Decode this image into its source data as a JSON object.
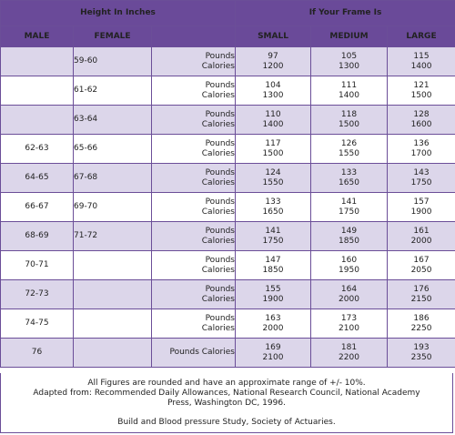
{
  "header": {
    "height_group": "Height In Inches",
    "frame_group": "If Your Frame Is",
    "male": "MALE",
    "female": "FEMALE",
    "small": "SMALL",
    "medium": "MEDIUM",
    "large": "LARGE"
  },
  "units": {
    "pounds": "Pounds",
    "calories": "Calories",
    "combined": "Pounds Calories"
  },
  "rows": [
    {
      "male": "",
      "female": "59-60",
      "small_lb": "97",
      "small_cal": "1200",
      "medium_lb": "105",
      "medium_cal": "1300",
      "large_lb": "115",
      "large_cal": "1400"
    },
    {
      "male": "",
      "female": "61-62",
      "small_lb": "104",
      "small_cal": "1300",
      "medium_lb": "111",
      "medium_cal": "1400",
      "large_lb": "121",
      "large_cal": "1500"
    },
    {
      "male": "",
      "female": "63-64",
      "small_lb": "110",
      "small_cal": "1400",
      "medium_lb": "118",
      "medium_cal": "1500",
      "large_lb": "128",
      "large_cal": "1600"
    },
    {
      "male": "62-63",
      "female": "65-66",
      "small_lb": "117",
      "small_cal": "1500",
      "medium_lb": "126",
      "medium_cal": "1550",
      "large_lb": "136",
      "large_cal": "1700"
    },
    {
      "male": "64-65",
      "female": "67-68",
      "small_lb": "124",
      "small_cal": "1550",
      "medium_lb": "133",
      "medium_cal": "1650",
      "large_lb": "143",
      "large_cal": "1750"
    },
    {
      "male": "66-67",
      "female": "69-70",
      "small_lb": "133",
      "small_cal": "1650",
      "medium_lb": "141",
      "medium_cal": "1750",
      "large_lb": "157",
      "large_cal": "1900"
    },
    {
      "male": "68-69",
      "female": "71-72",
      "small_lb": "141",
      "small_cal": "1750",
      "medium_lb": "149",
      "medium_cal": "1850",
      "large_lb": "161",
      "large_cal": "2000"
    },
    {
      "male": "70-71",
      "female": "",
      "small_lb": "147",
      "small_cal": "1850",
      "medium_lb": "160",
      "medium_cal": "1950",
      "large_lb": "167",
      "large_cal": "2050"
    },
    {
      "male": "72-73",
      "female": "",
      "small_lb": "155",
      "small_cal": "1900",
      "medium_lb": "164",
      "medium_cal": "2000",
      "large_lb": "176",
      "large_cal": "2150"
    },
    {
      "male": "74-75",
      "female": "",
      "small_lb": "163",
      "small_cal": "2000",
      "medium_lb": "173",
      "medium_cal": "2100",
      "large_lb": "186",
      "large_cal": "2250"
    },
    {
      "male": "76",
      "female": "",
      "small_lb": "169",
      "small_cal": "2100",
      "medium_lb": "181",
      "medium_cal": "2200",
      "large_lb": "193",
      "large_cal": "2350"
    }
  ],
  "footer": {
    "line1": "All Figures are rounded and have an approximate range of +/- 10%.",
    "line2": "Adapted from: Recommended Daily Allowances, National Research Council, National Academy",
    "line3": "Press, Washington DC, 1996.",
    "line4": "Build and Blood pressure Study, Society of Actuaries."
  },
  "colors": {
    "header_bg": "#6a4a99",
    "shade_bg": "#dcd6ea",
    "border": "#6b4e98"
  }
}
